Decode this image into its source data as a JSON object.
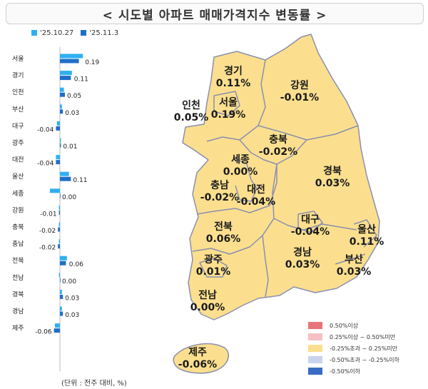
{
  "title": "< 시도별 아파트 매매가격지수 변동률 >",
  "unit_note": "(단위 : 전주 대비, %)",
  "colors": {
    "prev_bar": "#2fb0f0",
    "curr_bar": "#1e6fc8",
    "map_fill": "#fbdf8e",
    "map_stroke": "#8a8fb0",
    "label_prev_color": "#333333",
    "legend_1": "#e8737a",
    "legend_2": "#f6c0c4",
    "legend_3": "#fbdf8e",
    "legend_4": "#c9d2ee",
    "legend_5": "#3a6cc4"
  },
  "chart_data": [
    {
      "type": "bar",
      "orientation": "horizontal",
      "categories": [
        "서울",
        "경기",
        "인천",
        "부산",
        "대구",
        "광주",
        "대전",
        "울산",
        "세종",
        "강원",
        "충북",
        "충남",
        "전북",
        "전남",
        "경북",
        "경남",
        "제주"
      ],
      "series": [
        {
          "name": "'25.10.27",
          "values": [
            0.23,
            0.12,
            0.04,
            0.02,
            -0.03,
            0.01,
            -0.04,
            0.09,
            -0.1,
            -0.01,
            -0.01,
            -0.01,
            0.07,
            -0.01,
            0.02,
            0.02,
            -0.05
          ]
        },
        {
          "name": "'25.11.3",
          "values": [
            0.19,
            0.11,
            0.05,
            0.03,
            -0.04,
            0.01,
            -0.04,
            0.11,
            0.0,
            -0.01,
            -0.02,
            -0.02,
            0.06,
            0.0,
            0.03,
            0.03,
            -0.06
          ]
        }
      ],
      "value_labels": [
        "0.19",
        "0.11",
        "0.05",
        "0.03",
        "-0.04",
        "0.01",
        "-0.04",
        "0.11",
        "0.00",
        "-0.01",
        "-0.02",
        "-0.02",
        "0.06",
        "0.00",
        "0.03",
        "0.03",
        "-0.06"
      ]
    },
    {
      "type": "choropleth",
      "regions": [
        {
          "name": "경기",
          "value_text": "0.11%",
          "value": 0.11
        },
        {
          "name": "강원",
          "value_text": "-0.01%",
          "value": -0.01
        },
        {
          "name": "인천",
          "value_text": "0.05%",
          "value": 0.05
        },
        {
          "name": "서울",
          "value_text": "0.19%",
          "value": 0.19
        },
        {
          "name": "충북",
          "value_text": "-0.02%",
          "value": -0.02
        },
        {
          "name": "세종",
          "value_text": "0.00%",
          "value": 0.0
        },
        {
          "name": "경북",
          "value_text": "0.03%",
          "value": 0.03
        },
        {
          "name": "충남",
          "value_text": "-0.02%",
          "value": -0.02
        },
        {
          "name": "대전",
          "value_text": "-0.04%",
          "value": -0.04
        },
        {
          "name": "전북",
          "value_text": "0.06%",
          "value": 0.06
        },
        {
          "name": "대구",
          "value_text": "-0.04%",
          "value": -0.04
        },
        {
          "name": "울산",
          "value_text": "0.11%",
          "value": 0.11
        },
        {
          "name": "광주",
          "value_text": "0.01%",
          "value": 0.01
        },
        {
          "name": "경남",
          "value_text": "0.03%",
          "value": 0.03
        },
        {
          "name": "부산",
          "value_text": "0.03%",
          "value": 0.03
        },
        {
          "name": "전남",
          "value_text": "0.00%",
          "value": 0.0
        },
        {
          "name": "제주",
          "value_text": "-0.06%",
          "value": -0.06
        }
      ],
      "legend": [
        "0.50%이상",
        "0.25%이상 ~ 0.50%미만",
        "-0.25%초과 ~ 0.25%미만",
        "-0.50%초과 ~ -0.25%이하",
        "-0.50%이하"
      ]
    }
  ]
}
